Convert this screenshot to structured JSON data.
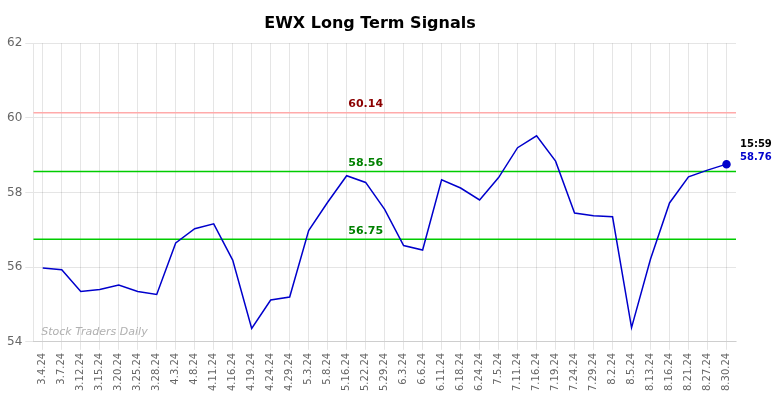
{
  "chart_data": {
    "type": "line",
    "title": "EWX Long Term Signals",
    "categories": [
      "3.4.24",
      "3.7.24",
      "3.12.24",
      "3.15.24",
      "3.20.24",
      "3.25.24",
      "3.28.24",
      "4.3.24",
      "4.8.24",
      "4.11.24",
      "4.16.24",
      "4.19.24",
      "4.24.24",
      "4.29.24",
      "5.3.24",
      "5.8.24",
      "5.16.24",
      "5.22.24",
      "5.29.24",
      "6.3.24",
      "6.6.24",
      "6.11.24",
      "6.18.24",
      "6.24.24",
      "7.5.24",
      "7.11.24",
      "7.16.24",
      "7.19.24",
      "7.24.24",
      "7.29.24",
      "8.2.24",
      "8.5.24",
      "8.13.24",
      "8.16.24",
      "8.21.24",
      "8.27.24",
      "8.30.24"
    ],
    "values": [
      55.98,
      55.93,
      55.35,
      55.4,
      55.52,
      55.35,
      55.27,
      56.65,
      57.03,
      57.16,
      56.19,
      54.36,
      55.12,
      55.2,
      56.98,
      57.74,
      58.45,
      58.27,
      57.55,
      56.58,
      56.46,
      58.34,
      58.12,
      57.8,
      58.4,
      59.2,
      59.52,
      58.84,
      57.45,
      57.38,
      57.35,
      54.38,
      56.22,
      57.72,
      58.42,
      58.6,
      58.76
    ],
    "color": "#0000cc",
    "hlines": [
      {
        "value": 60.14,
        "color": "#ffaaaa",
        "label": "60.14",
        "label_color": "#8b0000"
      },
      {
        "value": 58.56,
        "color": "#00cc00",
        "label": "58.56",
        "label_color": "#008000"
      },
      {
        "value": 56.75,
        "color": "#00cc00",
        "label": "56.75",
        "label_color": "#008000"
      }
    ],
    "annotations": [
      {
        "text": "15:59",
        "color": "#000000"
      },
      {
        "text": "58.76",
        "value": 58.76,
        "color": "#0000cc"
      }
    ],
    "watermark": "Stock Traders Daily",
    "ylim": [
      54,
      62
    ],
    "yticks": [
      54,
      56,
      58,
      60,
      62
    ],
    "grid": true
  }
}
